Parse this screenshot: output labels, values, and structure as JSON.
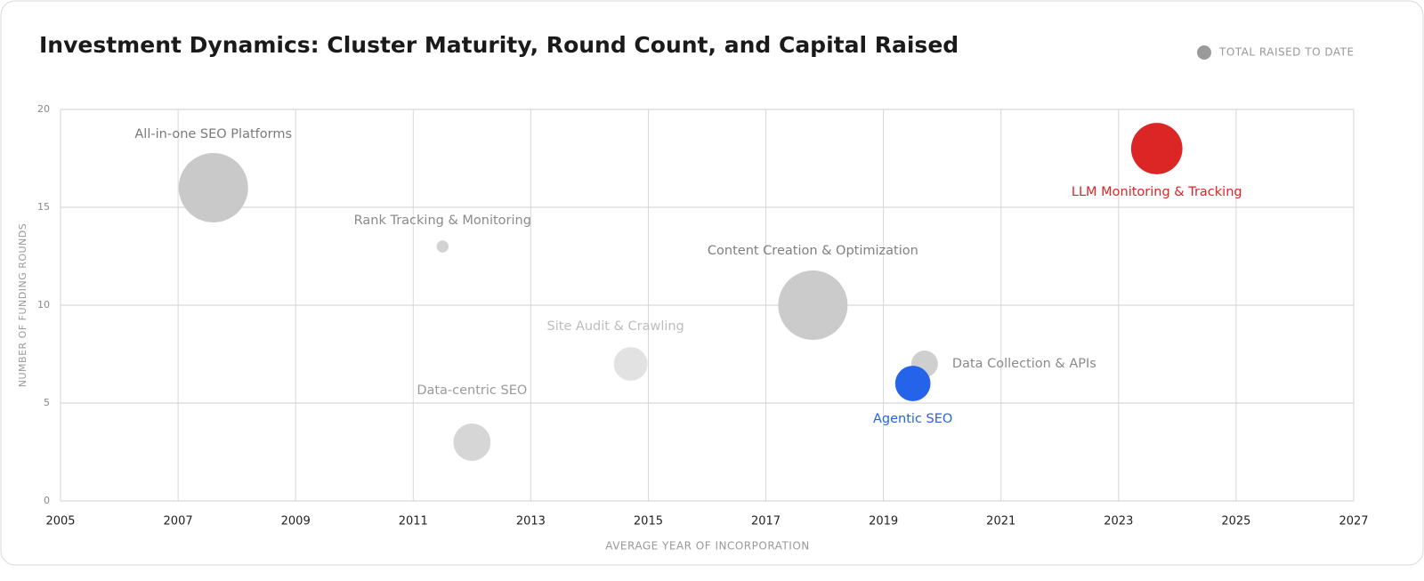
{
  "chart_data": {
    "type": "scatter",
    "title": "Investment Dynamics: Cluster Maturity, Round Count, and Capital Raised",
    "legend": "TOTAL RAISED TO DATE",
    "legend_color": "#9a9a9a",
    "xlabel": "AVERAGE YEAR OF INCORPORATION",
    "ylabel": "NUMBER OF FUNDING ROUNDS",
    "labels": [
      "All-in-one SEO Platforms",
      "Rank Tracking & Monitoring",
      "Data-centric SEO",
      "Site Audit & Crawling",
      "Content Creation & Optimization",
      "Data Collection & APIs",
      "Agentic SEO",
      "LLM Monitoring & Tracking"
    ],
    "x": [
      2007.6,
      2011.5,
      2012.0,
      2014.7,
      2017.8,
      2019.7,
      2019.5,
      2023.65
    ],
    "y": [
      16,
      13,
      3,
      7,
      10,
      7,
      6,
      18
    ],
    "sizes": [
      170,
      5,
      49,
      40,
      170,
      25,
      44,
      93
    ],
    "colors": [
      "#c9c9c9",
      "#d2d2d2",
      "#d6d6d6",
      "#e2e2e2",
      "#cbcbcb",
      "#cfcfcf",
      "#2563eb",
      "#dc2626"
    ],
    "label_colors": [
      "#7a7a7a",
      "#8a8a8a",
      "#9a9a9a",
      "#bdbdbd",
      "#7f7f7f",
      "#8a8a8a",
      "#2563eb",
      "#dc2626"
    ],
    "xlim": [
      2005,
      2027
    ],
    "xticks": [
      2005,
      2007,
      2009,
      2011,
      2013,
      2015,
      2017,
      2019,
      2021,
      2023,
      2025,
      2027
    ],
    "ylim": [
      0,
      20
    ],
    "yticks": [
      0,
      5,
      10,
      15,
      20
    ],
    "grid": true
  }
}
